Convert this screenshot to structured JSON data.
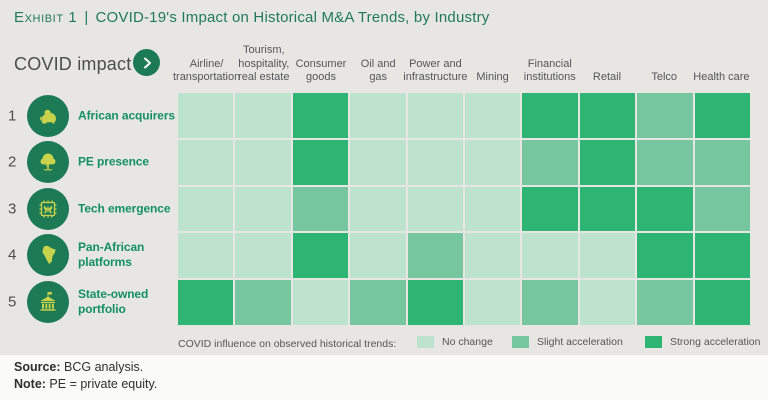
{
  "title": {
    "exhibit": "Exhibit 1",
    "separator": "|",
    "text": "COVID-19's Impact on Historical M&A Trends, by Industry"
  },
  "sidebar": {
    "heading": "COVID impact",
    "rows": [
      {
        "num": "1",
        "label": "African acquirers",
        "icon": "lion-icon"
      },
      {
        "num": "2",
        "label": "PE presence",
        "icon": "tree-icon"
      },
      {
        "num": "3",
        "label": "Tech emergence",
        "icon": "butterfly-chip-icon"
      },
      {
        "num": "4",
        "label": "Pan-African\nplatforms",
        "icon": "africa-map-icon"
      },
      {
        "num": "5",
        "label": "State-owned\nportfolio",
        "icon": "bank-icon"
      }
    ]
  },
  "chart_data": {
    "type": "heatmap",
    "title": "COVID-19's Impact on Historical M&A Trends, by Industry",
    "columns": [
      "Airline/\ntransportation",
      "Tourism,\nhospitality,\nreal estate",
      "Consumer\ngoods",
      "Oil and\ngas",
      "Power and\ninfrastructure",
      "Mining",
      "Financial\ninstitutions",
      "Retail",
      "Telco",
      "Health care"
    ],
    "rows": [
      "African acquirers",
      "PE presence",
      "Tech emergence",
      "Pan-African platforms",
      "State-owned portfolio"
    ],
    "levels": [
      "No change",
      "Slight acceleration",
      "Strong acceleration"
    ],
    "values": [
      [
        0,
        0,
        2,
        0,
        0,
        0,
        2,
        2,
        1,
        2
      ],
      [
        0,
        0,
        2,
        0,
        0,
        0,
        1,
        2,
        1,
        1
      ],
      [
        0,
        0,
        1,
        0,
        0,
        0,
        2,
        2,
        2,
        1
      ],
      [
        0,
        0,
        2,
        0,
        1,
        0,
        0,
        0,
        2,
        2
      ],
      [
        2,
        1,
        0,
        1,
        2,
        0,
        1,
        0,
        1,
        2
      ]
    ],
    "colors": {
      "0": "#bde2ce",
      "1": "#76c6a0",
      "2": "#2fb573"
    },
    "legend_position": "bottom"
  },
  "legend": {
    "label": "COVID influence on observed historical trends:",
    "items": [
      {
        "label": "No change",
        "level": "0"
      },
      {
        "label": "Slight acceleration",
        "level": "1"
      },
      {
        "label": "Strong acceleration",
        "level": "2"
      }
    ]
  },
  "footer": {
    "source_label": "Source:",
    "source_text": " BCG analysis.",
    "note_label": "Note:",
    "note_text": " PE = private equity."
  },
  "colors": {
    "background": "#e8e6e3",
    "title_green": "#1f7a5c",
    "label_green": "#129161",
    "icon_circle_green": "#1c7a55",
    "icon_glyph_yellow": "#c9d24b",
    "header_gray": "#54565a",
    "footer_bg": "#fafaf8"
  }
}
